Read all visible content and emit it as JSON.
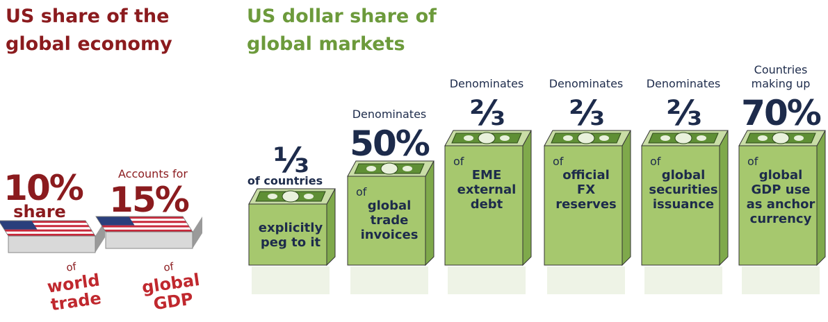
{
  "economy": {
    "title": [
      "US share of the",
      "global economy"
    ],
    "items": [
      {
        "value": "10%",
        "sub": "share",
        "of": "of",
        "text": [
          "world",
          "trade"
        ]
      },
      {
        "lead": [
          "Accounts for"
        ],
        "value": "15%",
        "of": "of",
        "text": [
          "global",
          "GDP"
        ]
      }
    ]
  },
  "markets": {
    "title": [
      "US dollar share of",
      "global markets"
    ],
    "items": [
      {
        "value": "⅓",
        "sub": "of countries",
        "text": [
          "explicitly",
          "peg to it"
        ]
      },
      {
        "lead": [
          "Denominates"
        ],
        "value": "50%",
        "of": "of",
        "text": [
          "global",
          "trade",
          "invoices"
        ]
      },
      {
        "lead": [
          "Denominates"
        ],
        "value": "⅔",
        "of": "of",
        "text": [
          "EME",
          "external",
          "debt"
        ]
      },
      {
        "lead": [
          "Denominates"
        ],
        "value": "⅔",
        "of": "of",
        "text": [
          "official",
          "FX",
          "reserves"
        ]
      },
      {
        "lead": [
          "Denominates"
        ],
        "value": "⅔",
        "of": "of",
        "text": [
          "global",
          "securities",
          "issuance"
        ]
      },
      {
        "lead": [
          "Countries",
          "making up"
        ],
        "value": "70%",
        "of": "of",
        "text": [
          "global",
          "GDP use",
          "as anchor",
          "currency"
        ]
      }
    ]
  }
}
